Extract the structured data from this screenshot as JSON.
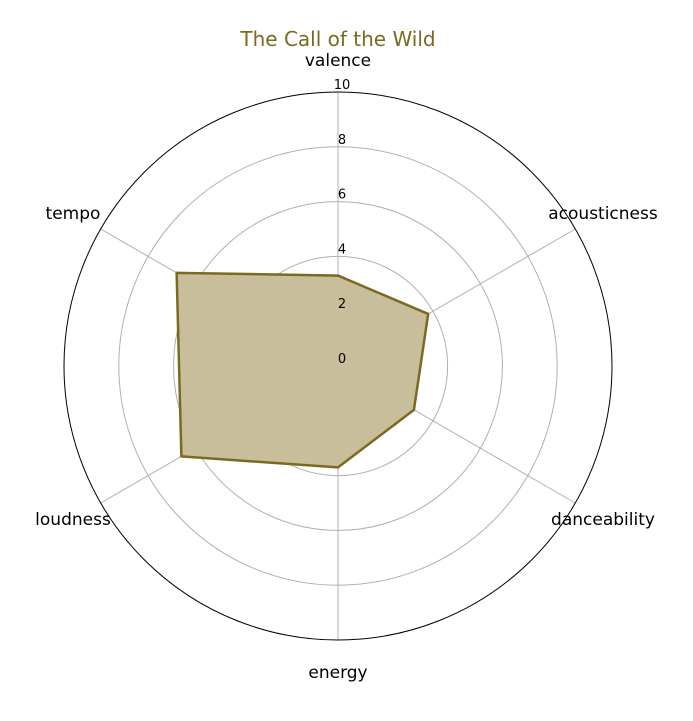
{
  "chart_data": {
    "type": "radar",
    "title": "The Call of the Wild",
    "axes": [
      "valence",
      "acousticness",
      "danceability",
      "energy",
      "loudness",
      "tempo"
    ],
    "series": [
      {
        "values": [
          3.3,
          3.8,
          3.2,
          3.7,
          6.6,
          6.8
        ]
      }
    ],
    "rlim": [
      0,
      10
    ],
    "rticks": [
      "0",
      "2",
      "4",
      "6",
      "8",
      "10"
    ],
    "grid": true,
    "colors": {
      "line": "#7a6a1f",
      "fill": "#c9be9c",
      "title": "#7a6a1f",
      "grid": "#b0b0b0",
      "frame": "#000000"
    }
  }
}
